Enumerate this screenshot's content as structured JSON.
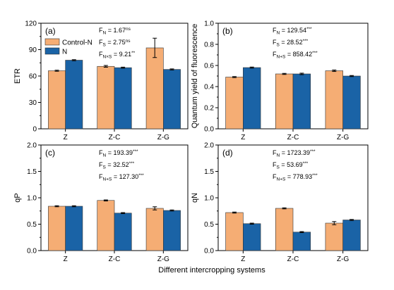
{
  "colors": {
    "control": "#f5ad74",
    "n": "#1a63a6"
  },
  "xlabel": "Different intercropping systems",
  "legend": [
    "Control-N",
    "N"
  ],
  "chart_data": [
    {
      "type": "bar",
      "label": "(a)",
      "ylabel": "ETR",
      "ylim": [
        0,
        120
      ],
      "yticks": [
        0,
        30,
        60,
        90,
        120
      ],
      "yticklabels": [
        "0",
        "30",
        "60",
        "90",
        "120"
      ],
      "categories": [
        "Z",
        "Z-C",
        "Z-G"
      ],
      "series": [
        {
          "name": "Control-N",
          "values": [
            66,
            71,
            92
          ],
          "errors": [
            0.6,
            1,
            11
          ]
        },
        {
          "name": "N",
          "values": [
            78,
            69.5,
            67.5
          ],
          "errors": [
            0.6,
            0.6,
            0.6
          ]
        }
      ],
      "stats": [
        {
          "sub": "N",
          "value": "1.67",
          "sup": "ns"
        },
        {
          "sub": "S",
          "value": "2.75",
          "sup": "ns"
        },
        {
          "sub": "N×S",
          "value": "9.21",
          "sup": "**"
        }
      ],
      "legend": "top-left"
    },
    {
      "type": "bar",
      "label": "(b)",
      "ylabel": "Quantum yield of fluorescence",
      "ylim": [
        0,
        1
      ],
      "yticks": [
        0,
        0.2,
        0.4,
        0.6,
        0.8,
        1.0
      ],
      "yticklabels": [
        "0.0",
        "0.2",
        "0.4",
        "0.6",
        "0.8",
        "1.0"
      ],
      "categories": [
        "Z",
        "Z-C",
        "Z-G"
      ],
      "series": [
        {
          "name": "Control-N",
          "values": [
            0.49,
            0.52,
            0.55
          ],
          "errors": [
            0.005,
            0.005,
            0.007
          ]
        },
        {
          "name": "N",
          "values": [
            0.58,
            0.52,
            0.5
          ],
          "errors": [
            0.005,
            0.007,
            0.005
          ]
        }
      ],
      "stats": [
        {
          "sub": "N",
          "value": "129.54",
          "sup": "***"
        },
        {
          "sub": "S",
          "value": "28.52",
          "sup": "***"
        },
        {
          "sub": "N+S",
          "value": "858.42",
          "sup": "***"
        }
      ]
    },
    {
      "type": "bar",
      "label": "(c)",
      "ylabel": "qP",
      "ylim": [
        0,
        2
      ],
      "yticks": [
        0,
        0.5,
        1.0,
        1.5,
        2.0
      ],
      "yticklabels": [
        "0.0",
        "0.5",
        "1.0",
        "1.5",
        "2.0"
      ],
      "categories": [
        "Z",
        "Z-C",
        "Z-G"
      ],
      "series": [
        {
          "name": "Control-N",
          "values": [
            0.84,
            0.95,
            0.8
          ],
          "errors": [
            0.01,
            0.01,
            0.03
          ]
        },
        {
          "name": "N",
          "values": [
            0.84,
            0.71,
            0.76
          ],
          "errors": [
            0.01,
            0.01,
            0.01
          ]
        }
      ],
      "stats": [
        {
          "sub": "N",
          "value": "193.39",
          "sup": "***"
        },
        {
          "sub": "S",
          "value": "32.52",
          "sup": "***"
        },
        {
          "sub": "N+S",
          "value": "127.30",
          "sup": "***"
        }
      ]
    },
    {
      "type": "bar",
      "label": "(d)",
      "ylabel": "qN",
      "ylim": [
        0,
        2
      ],
      "yticks": [
        0,
        0.5,
        1.0,
        1.5,
        2.0
      ],
      "yticklabels": [
        "0.0",
        "0.5",
        "1.0",
        "1.5",
        "2.0"
      ],
      "categories": [
        "Z",
        "Z-C",
        "Z-G"
      ],
      "series": [
        {
          "name": "Control-N",
          "values": [
            0.72,
            0.8,
            0.52
          ],
          "errors": [
            0.01,
            0.01,
            0.03
          ]
        },
        {
          "name": "N",
          "values": [
            0.51,
            0.35,
            0.58
          ],
          "errors": [
            0.01,
            0.01,
            0.01
          ]
        }
      ],
      "stats": [
        {
          "sub": "N",
          "value": "1723.39",
          "sup": "***"
        },
        {
          "sub": "S",
          "value": "53.69",
          "sup": "***"
        },
        {
          "sub": "N+S",
          "value": "778.93",
          "sup": "***"
        }
      ]
    }
  ]
}
